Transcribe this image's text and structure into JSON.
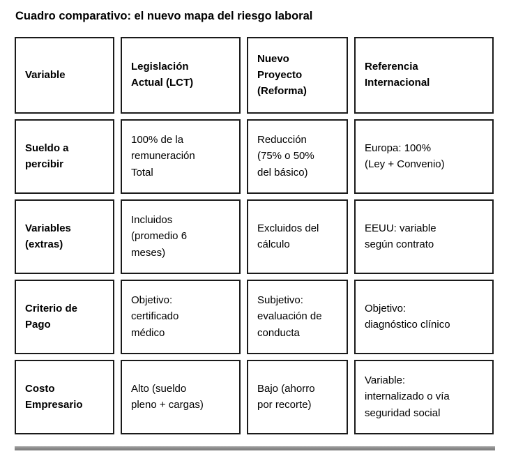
{
  "page": {
    "title": "Cuadro comparativo: el nuevo mapa del riesgo laboral"
  },
  "table": {
    "headers": [
      "Variable",
      "Legislación\nActual (LCT)",
      "Nuevo\nProyecto\n(Reforma)",
      "Referencia\nInternacional"
    ],
    "rows": [
      {
        "cells": [
          "Sueldo a\npercibir",
          "100% de la\nremuneración\nTotal",
          "Reducción\n(75% o 50%\ndel básico)",
          "Europa: 100%\n(Ley + Convenio)"
        ]
      },
      {
        "cells": [
          "Variables\n(extras)",
          "Incluidos\n(promedio 6\nmeses)",
          "Excluidos del\ncálculo",
          "EEUU: variable\nsegún contrato"
        ]
      },
      {
        "cells": [
          "Criterio de\nPago",
          "Objetivo:\ncertificado\nmédico",
          "Subjetivo:\nevaluación de\nconducta",
          "Objetivo:\ndiagnóstico clínico"
        ]
      },
      {
        "cells": [
          "Costo\nEmpresario",
          "Alto (sueldo\npleno + cargas)",
          "Bajo (ahorro\npor recorte)",
          "Variable:\ninternalizado o vía\nseguridad social"
        ]
      }
    ]
  },
  "colors": {
    "text": "#000000",
    "cell_border": "#1a1a1a",
    "divider": "#8a8a8a",
    "background": "#ffffff"
  }
}
